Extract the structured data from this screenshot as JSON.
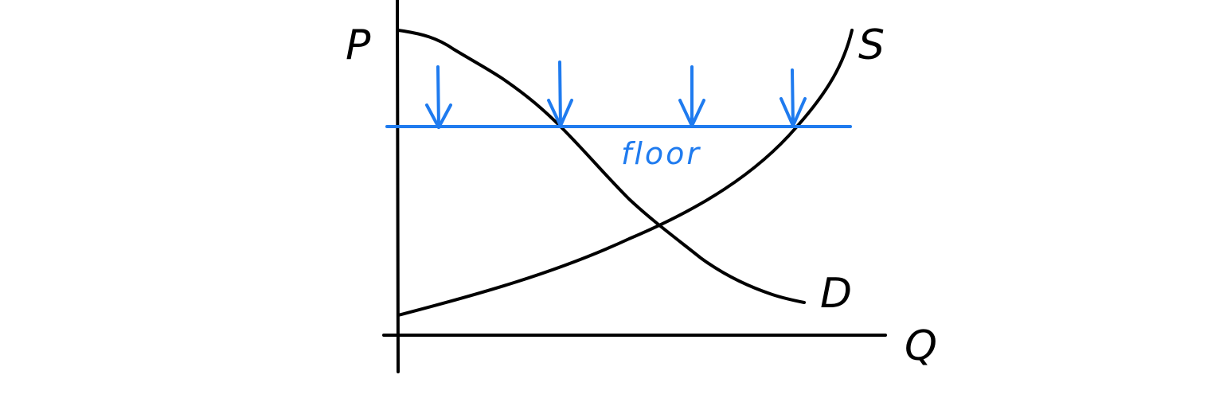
{
  "diagram": {
    "axes": {
      "y_label": "P",
      "x_label": "Q"
    },
    "curves": {
      "supply_label": "S",
      "demand_label": "D"
    },
    "price_floor": {
      "label": "floor",
      "arrow_count": 4,
      "arrow_icon": "down-arrow-icon"
    },
    "colors": {
      "ink": "#000000",
      "accent": "#1f7bef",
      "background": "#ffffff"
    }
  }
}
